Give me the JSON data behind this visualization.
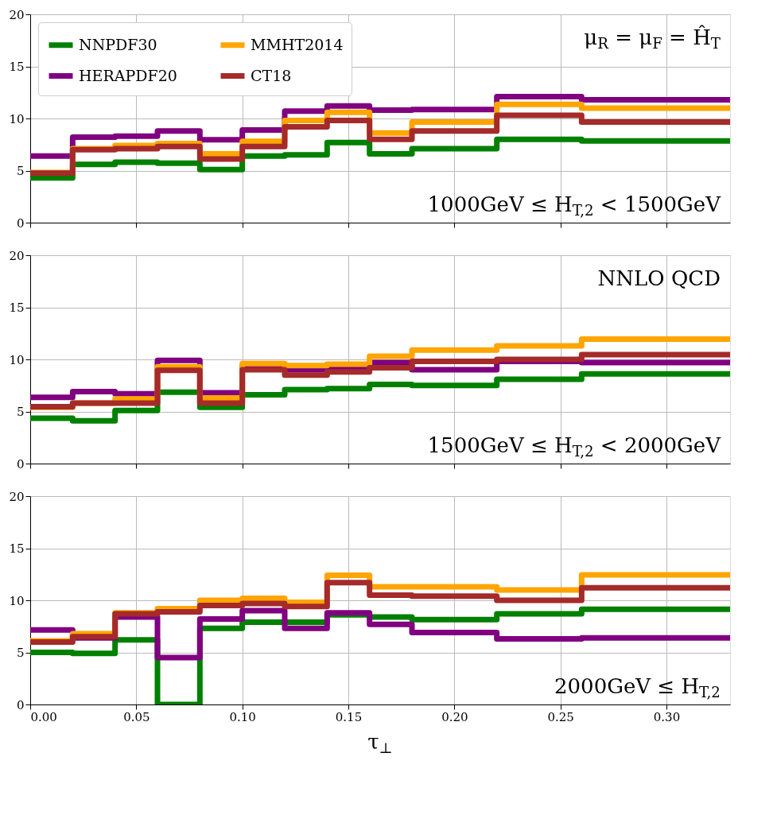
{
  "chart_data": [
    {
      "type": "step",
      "x": [
        0,
        0.02,
        0.04,
        0.06,
        0.08,
        0.1,
        0.12,
        0.14,
        0.16,
        0.18,
        0.22,
        0.26,
        0.33
      ],
      "series": [
        {
          "name": "NNPDF30",
          "color": "#008000",
          "values": [
            4.3,
            5.6,
            5.8,
            5.7,
            5.1,
            6.4,
            6.5,
            7.7,
            6.6,
            7.1,
            8.0,
            7.85,
            7.85
          ]
        },
        {
          "name": "HERAPDF20",
          "color": "#800080",
          "values": [
            6.4,
            8.2,
            8.3,
            8.8,
            7.95,
            8.9,
            10.7,
            11.2,
            10.8,
            10.85,
            12.1,
            11.8,
            11.8
          ]
        },
        {
          "name": "MMHT2014",
          "color": "#ffa500",
          "values": [
            4.8,
            7.1,
            7.4,
            7.6,
            6.6,
            7.8,
            9.8,
            10.6,
            8.6,
            9.65,
            11.35,
            11.0,
            11.0
          ]
        },
        {
          "name": "CT18",
          "color": "#a52a2a",
          "values": [
            4.75,
            7.0,
            7.1,
            7.3,
            6.1,
            7.3,
            9.2,
            9.8,
            8.0,
            8.8,
            10.3,
            9.65,
            9.65
          ]
        }
      ],
      "xlim": [
        0,
        0.33
      ],
      "ylim": [
        0,
        20
      ],
      "xticks": [
        0,
        0.05,
        0.1,
        0.15,
        0.2,
        0.25,
        0.3
      ],
      "yticks": [
        0,
        5,
        10,
        15,
        20
      ],
      "grid": true,
      "legend": "top left",
      "tick_labels": "y",
      "annotations": [
        "μ$_{R}$ = μ$_{F}$ = Ĥ$_{T}$",
        "1000GeV ≤ H$_{T,2}$ < 1500GeV"
      ]
    },
    {
      "type": "step",
      "x": [
        0,
        0.02,
        0.04,
        0.06,
        0.08,
        0.1,
        0.12,
        0.14,
        0.16,
        0.18,
        0.22,
        0.26,
        0.33
      ],
      "series": [
        {
          "color": "#008000",
          "values": [
            4.35,
            4.1,
            5.1,
            6.85,
            5.4,
            6.6,
            7.1,
            7.2,
            7.6,
            7.5,
            8.1,
            8.6,
            8.6
          ]
        },
        {
          "color": "#800080",
          "values": [
            6.35,
            6.9,
            6.7,
            9.9,
            6.8,
            9.4,
            9.0,
            9.2,
            9.7,
            9.0,
            9.8,
            9.7,
            9.7
          ]
        },
        {
          "color": "#ffa500",
          "values": [
            5.4,
            5.8,
            6.2,
            9.3,
            6.3,
            9.6,
            9.4,
            9.55,
            10.3,
            10.9,
            11.3,
            11.95,
            11.95
          ]
        },
        {
          "color": "#a52a2a",
          "values": [
            5.45,
            5.8,
            5.8,
            8.95,
            5.8,
            9.0,
            8.5,
            8.8,
            9.2,
            9.8,
            10.0,
            10.45,
            10.45
          ]
        }
      ],
      "xlim": [
        0,
        0.33
      ],
      "ylim": [
        0,
        20
      ],
      "xticks": [
        0,
        0.05,
        0.1,
        0.15,
        0.2,
        0.25,
        0.3
      ],
      "yticks": [
        0,
        5,
        10,
        15,
        20
      ],
      "grid": true,
      "tick_labels": "y",
      "annotations": [
        "NNLO QCD",
        "1500GeV ≤ H$_{T,2}$ < 2000GeV"
      ]
    },
    {
      "type": "step",
      "x": [
        0,
        0.02,
        0.04,
        0.06,
        0.08,
        0.1,
        0.12,
        0.14,
        0.16,
        0.18,
        0.22,
        0.26,
        0.33
      ],
      "series": [
        {
          "color": "#008000",
          "values": [
            5.0,
            4.9,
            6.2,
            0,
            7.3,
            7.9,
            7.9,
            8.6,
            8.4,
            8.15,
            8.7,
            9.15,
            9.15
          ]
        },
        {
          "color": "#800080",
          "values": [
            7.15,
            6.4,
            8.4,
            4.5,
            8.2,
            9.0,
            7.3,
            8.8,
            7.7,
            6.9,
            6.3,
            6.4,
            6.4
          ]
        },
        {
          "color": "#ffa500",
          "values": [
            6.1,
            6.8,
            8.8,
            9.2,
            10.0,
            10.2,
            9.8,
            12.4,
            11.3,
            11.3,
            11.0,
            12.45,
            12.45
          ]
        },
        {
          "color": "#a52a2a",
          "values": [
            6.0,
            6.5,
            8.7,
            8.9,
            9.5,
            9.7,
            9.4,
            11.7,
            10.5,
            10.4,
            10.0,
            11.2,
            11.2
          ]
        }
      ],
      "xlim": [
        0,
        0.33
      ],
      "ylim": [
        0,
        20
      ],
      "xticks": [
        {
          "value": 0,
          "label": "0.00"
        },
        {
          "value": 0.05,
          "label": "0.05"
        },
        {
          "value": 0.1,
          "label": "0.10"
        },
        {
          "value": 0.15,
          "label": "0.15"
        },
        {
          "value": 0.2,
          "label": "0.20"
        },
        {
          "value": 0.25,
          "label": "0.25"
        },
        {
          "value": 0.3,
          "label": "0.30"
        }
      ],
      "yticks": [
        0,
        5,
        10,
        15,
        20
      ],
      "grid": true,
      "xlabel": "τ$_{⊥}$",
      "annotations": [
        "2000GeV ≤ H$_{T,2}$"
      ]
    }
  ]
}
